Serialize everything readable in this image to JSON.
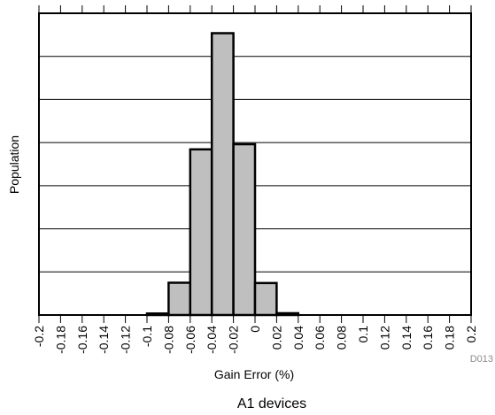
{
  "chart_data": {
    "type": "bar",
    "title": "",
    "xlabel": "Gain Error (%)",
    "ylabel": "Population",
    "x_ticks": [
      "-0.2",
      "-0.18",
      "-0.16",
      "-0.14",
      "-0.12",
      "-0.1",
      "-0.08",
      "-0.06",
      "-0.04",
      "-0.02",
      "0",
      "0.02",
      "0.04",
      "0.06",
      "0.08",
      "0.1",
      "0.12",
      "0.14",
      "0.16",
      "0.18",
      "0.2"
    ],
    "xlim": [
      -0.2,
      0.2
    ],
    "ylim": [
      0,
      100
    ],
    "grid": true,
    "bins": [
      {
        "from": -0.1,
        "to": -0.08,
        "value": 0.5
      },
      {
        "from": -0.08,
        "to": -0.06,
        "value": 10.7
      },
      {
        "from": -0.06,
        "to": -0.04,
        "value": 54.9
      },
      {
        "from": -0.04,
        "to": -0.02,
        "value": 93.4
      },
      {
        "from": -0.02,
        "to": 0.0,
        "value": 56.6
      },
      {
        "from": 0.0,
        "to": 0.02,
        "value": 10.6
      },
      {
        "from": 0.02,
        "to": 0.04,
        "value": 0.6
      }
    ],
    "bar_color": "#bfbfbf"
  },
  "figure_id": "D013",
  "caption": "A1 devices"
}
